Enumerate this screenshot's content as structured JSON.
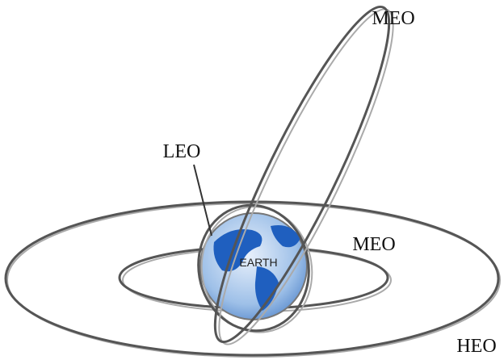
{
  "labels": {
    "meo_top": "MEO",
    "leo": "LEO",
    "meo_right": "MEO",
    "earth": "EARTH",
    "heo": "HEO"
  }
}
